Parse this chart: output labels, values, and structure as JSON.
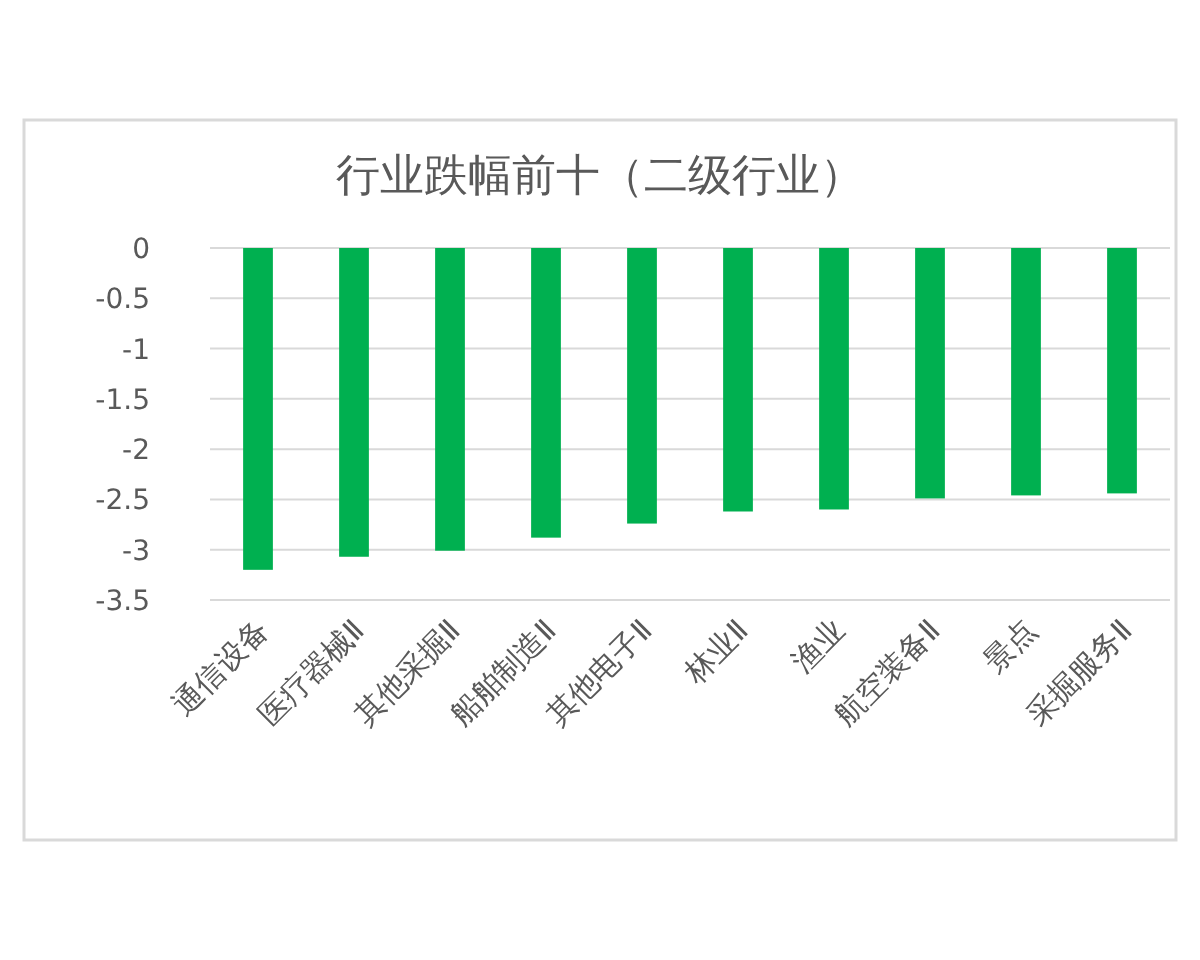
{
  "chart_data": {
    "type": "bar",
    "title": "行业跌幅前十（二级行业）",
    "categories": [
      "通信设备",
      "医疗器械Ⅱ",
      "其他采掘Ⅱ",
      "船舶制造Ⅱ",
      "其他电子Ⅱ",
      "林业Ⅱ",
      "渔业",
      "航空装备Ⅱ",
      "景点",
      "采掘服务Ⅱ"
    ],
    "values": [
      -3.2,
      -3.07,
      -3.01,
      -2.88,
      -2.74,
      -2.62,
      -2.6,
      -2.49,
      -2.46,
      -2.44
    ],
    "color": "#00b050",
    "ylim": [
      -3.5,
      0
    ],
    "yticks": [
      0,
      -0.5,
      -1,
      -1.5,
      -2,
      -2.5,
      -3,
      -3.5
    ],
    "grid": "y"
  }
}
